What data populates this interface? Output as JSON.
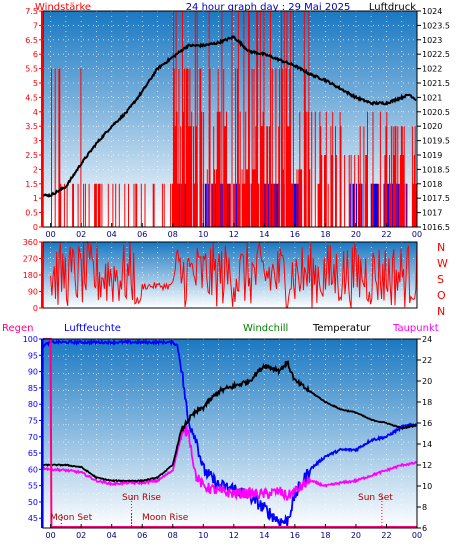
{
  "header": {
    "left": "Windstärke",
    "title": "24 hour graph day : 29 Mai 2025",
    "right": "Luftdruck"
  },
  "colors": {
    "wind": "#ff0000",
    "gust": "#0000ff",
    "pressure": "#000000",
    "humidity": "#0000ff",
    "windchill": "#008000",
    "temperature": "#000000",
    "dewpoint": "#ff00ff",
    "rain": "#ff0080",
    "sun": "#ff0000",
    "moon": "#b00000",
    "bg_top": "#1a78c2",
    "bg_bottom": "#ffffff"
  },
  "bottom_legend": {
    "rain": "Regen",
    "humidity": "Luftfeuchte",
    "windchill": "Windchill",
    "temperature": "Temperatur",
    "dewpoint": "Taupunkt"
  },
  "compass": [
    "N",
    "W",
    "S",
    "O",
    "N"
  ],
  "x_ticks": [
    "00",
    "02",
    "04",
    "06",
    "08",
    "10",
    "12",
    "14",
    "16",
    "18",
    "20",
    "22",
    "00"
  ],
  "annotations": {
    "sun_rise": "Sun Rise",
    "sun_set": "Sun Set",
    "moon_set": "Moon Set",
    "moon_rise": "Moon Rise"
  },
  "chart_data": [
    {
      "type": "line",
      "panel": "wind-pressure",
      "left_axis": {
        "label": "Windstärke",
        "ticks": [
          "0",
          "0.5",
          "1",
          "1.5",
          "2",
          "2.5",
          "3",
          "3.5",
          "4",
          "4.5",
          "5",
          "5.5",
          "6",
          "6.5",
          "7",
          "7.5"
        ],
        "range": [
          0,
          7.5
        ]
      },
      "right_axis": {
        "label": "Luftdruck",
        "ticks": [
          "1016.5",
          "1017",
          "1017.5",
          "1018",
          "1018.5",
          "1019",
          "1019.5",
          "1020",
          "1020.5",
          "1021",
          "1021.5",
          "1022",
          "1022.5",
          "1023",
          "1023.5",
          "1024"
        ],
        "range": [
          1016.5,
          1024
        ]
      },
      "x_range_hours": [
        -0.5,
        24
      ],
      "pressure": {
        "x": [
          -0.5,
          0,
          1,
          2,
          3,
          4,
          5,
          6,
          7,
          8,
          9,
          10,
          11,
          12,
          13,
          14,
          15,
          16,
          17,
          18,
          19,
          20,
          21,
          22,
          23,
          23.5,
          24
        ],
        "y": [
          1017.6,
          1017.6,
          1017.9,
          1018.7,
          1019.4,
          1020.0,
          1020.5,
          1021.2,
          1022.0,
          1022.4,
          1022.8,
          1022.8,
          1022.9,
          1023.1,
          1022.6,
          1022.5,
          1022.3,
          1022.1,
          1021.8,
          1021.6,
          1021.3,
          1021.0,
          1020.8,
          1020.8,
          1021.0,
          1021.1,
          1020.9
        ]
      }
    },
    {
      "type": "line",
      "panel": "wind-direction",
      "left_axis": {
        "ticks": [
          "0",
          "90",
          "180",
          "270",
          "360"
        ],
        "range": [
          0,
          360
        ]
      },
      "right_axis": {
        "ticks": [
          "N",
          "W",
          "S",
          "O",
          "N"
        ]
      },
      "x_range_hours": [
        -0.5,
        24
      ]
    },
    {
      "type": "line",
      "panel": "temperature-humidity",
      "left_axis": {
        "label": "Luftfeuchte",
        "ticks": [
          "45",
          "50",
          "55",
          "60",
          "65",
          "70",
          "75",
          "80",
          "85",
          "90",
          "95",
          "100"
        ],
        "range": [
          42,
          100
        ]
      },
      "right_axis": {
        "label": "Temperatur",
        "ticks": [
          "6",
          "8",
          "10",
          "12",
          "14",
          "16",
          "18",
          "20",
          "22",
          "24"
        ],
        "range": [
          6,
          24
        ]
      },
      "x_range_hours": [
        -0.5,
        24
      ],
      "humidity": {
        "x": [
          -0.5,
          0,
          2,
          4,
          6,
          7,
          8,
          8.3,
          8.6,
          9,
          9.5,
          10,
          11,
          12,
          13,
          14,
          15,
          15.5,
          16,
          17,
          18,
          19,
          20,
          21,
          22,
          23,
          24
        ],
        "y": [
          98,
          99,
          99,
          99,
          99,
          99,
          99,
          98,
          90,
          75,
          70,
          60,
          55,
          54,
          52,
          48,
          44,
          44,
          52,
          60,
          64,
          66,
          66,
          69,
          70,
          73,
          74
        ]
      },
      "temperature": {
        "x": [
          -0.5,
          0,
          1,
          2,
          3,
          4,
          5,
          6,
          7,
          8,
          8.5,
          9,
          9.5,
          10,
          11,
          12,
          13,
          14,
          15,
          15.5,
          16,
          17,
          18,
          19,
          20,
          21,
          22,
          23,
          24
        ],
        "y": [
          12.0,
          12.0,
          12.0,
          11.8,
          10.8,
          10.5,
          10.5,
          10.5,
          10.8,
          12.0,
          15.0,
          16.3,
          17.0,
          17.5,
          19.0,
          19.5,
          20.0,
          21.5,
          21.0,
          21.8,
          20.0,
          19.0,
          18.0,
          17.3,
          17.0,
          16.3,
          16.0,
          15.5,
          15.8
        ]
      },
      "dewpoint": {
        "x": [
          -0.5,
          0,
          1,
          2,
          3,
          4,
          5,
          6,
          7,
          8,
          8.5,
          9,
          9.5,
          10,
          11,
          12,
          13,
          14,
          15,
          15.5,
          16,
          17,
          18,
          19,
          20,
          21,
          22,
          23,
          24
        ],
        "y": [
          11.7,
          11.6,
          11.5,
          11.3,
          10.5,
          10.2,
          10.3,
          10.3,
          10.5,
          11.5,
          14.5,
          15.5,
          11.0,
          10.0,
          9.5,
          9.3,
          9.3,
          9.2,
          9.5,
          9.0,
          9.5,
          10.5,
          10.0,
          10.3,
          10.5,
          11.0,
          11.5,
          12.0,
          12.2
        ]
      },
      "rain": {
        "x": [
          -0.5,
          0,
          0.05,
          24
        ],
        "y": [
          100,
          100,
          42,
          42
        ]
      }
    }
  ]
}
